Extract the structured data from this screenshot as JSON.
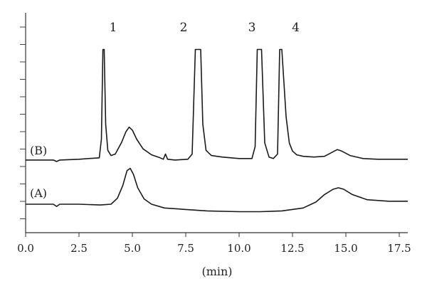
{
  "chart_data": {
    "type": "line",
    "title": "",
    "xlabel": "(min)",
    "ylabel": "",
    "xlim": [
      0.0,
      17.9
    ],
    "grid": false,
    "x_ticks": [
      "0.0",
      "2.5",
      "5.0",
      "7.5",
      "10.0",
      "12.5",
      "15.0",
      "17.5"
    ],
    "series": [
      {
        "name": "(B)",
        "x": [
          0.0,
          1.3,
          1.45,
          1.6,
          2.5,
          3.45,
          3.55,
          3.62,
          3.68,
          3.75,
          3.85,
          4.0,
          4.2,
          4.5,
          4.7,
          4.85,
          5.0,
          5.2,
          5.5,
          5.9,
          6.3,
          6.45,
          6.55,
          6.65,
          7.0,
          7.6,
          7.8,
          7.95,
          8.05,
          8.2,
          8.3,
          8.45,
          8.7,
          9.2,
          10.0,
          10.6,
          10.75,
          10.85,
          11.05,
          11.2,
          11.4,
          11.6,
          11.8,
          11.9,
          12.0,
          12.2,
          12.35,
          12.5,
          12.7,
          13.0,
          13.5,
          14.0,
          14.4,
          14.6,
          14.8,
          15.2,
          15.8,
          16.5,
          17.9
        ],
        "y": [
          0.2,
          0.2,
          0.0,
          0.2,
          0.3,
          0.5,
          3.0,
          15.0,
          15.0,
          5.0,
          1.5,
          0.8,
          1.0,
          2.6,
          4.0,
          4.6,
          4.2,
          3.0,
          1.7,
          0.9,
          0.5,
          0.3,
          1.0,
          0.3,
          0.2,
          0.3,
          1.0,
          15.0,
          15.0,
          15.0,
          5.0,
          1.5,
          0.8,
          0.6,
          0.4,
          0.4,
          2.0,
          15.0,
          15.0,
          2.5,
          0.6,
          0.4,
          1.0,
          15.0,
          15.0,
          6.0,
          2.5,
          1.4,
          0.9,
          0.7,
          0.6,
          0.7,
          1.3,
          1.6,
          1.4,
          0.8,
          0.4,
          0.3,
          0.3
        ]
      },
      {
        "name": "(A)",
        "x": [
          0.0,
          1.3,
          1.45,
          1.6,
          2.5,
          3.5,
          4.0,
          4.3,
          4.55,
          4.75,
          4.9,
          5.05,
          5.25,
          5.55,
          5.9,
          6.5,
          7.5,
          8.5,
          10.0,
          11.0,
          12.0,
          13.0,
          13.6,
          14.0,
          14.4,
          14.65,
          14.9,
          15.3,
          16.0,
          17.0,
          17.9
        ],
        "y": [
          0.0,
          0.0,
          -0.3,
          0.0,
          0.0,
          -0.1,
          0.0,
          0.8,
          2.5,
          4.5,
          4.8,
          4.0,
          2.2,
          0.7,
          0.0,
          -0.5,
          -0.7,
          -0.9,
          -1.0,
          -1.0,
          -0.9,
          -0.5,
          0.3,
          1.3,
          2.0,
          2.2,
          2.0,
          1.3,
          0.6,
          0.4,
          0.4
        ]
      }
    ],
    "peak_labels": [
      {
        "text": "1",
        "x": 4.1
      },
      {
        "text": "2",
        "x": 7.4
      },
      {
        "text": "3",
        "x": 10.6
      },
      {
        "text": "4",
        "x": 12.65
      }
    ]
  }
}
